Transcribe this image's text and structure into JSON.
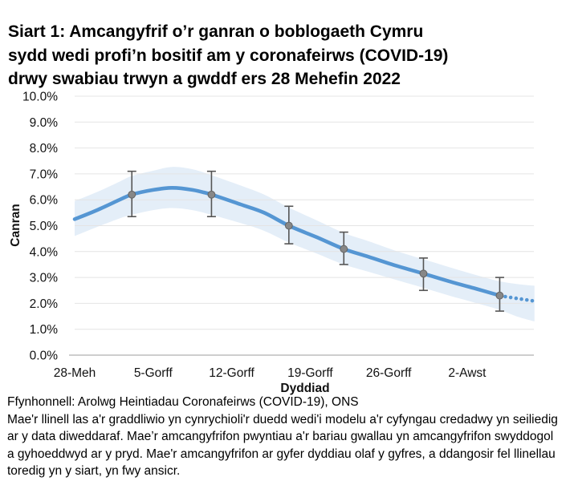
{
  "page": {
    "title_lines": [
      "Siart 1: Amcangyfrif o’r ganran o boblogaeth Cymru",
      "sydd wedi profi’n bositif am y coronafeirws (COVID-19)",
      "drwy swabiau trwyn a gwddf ers 28 Mehefin 2022"
    ],
    "source": "Ffynhonnell: Arolwg Heintiadau Coronafeirws (COVID-19), ONS",
    "note_lines": [
      "Mae'r llinell las a'r graddliwio yn cynrychioli'r duedd wedi'i modelu a'r cyfyngau credadwy yn seiliedig",
      "ar y data diweddaraf. Mae’r amcangyfrifon pwyntiau a'r bariau gwallau yn amcangyfrifon swyddogol",
      "a gyhoeddwyd ar y pryd. Mae'r amcangyfrifon ar gyfer dyddiau olaf y gyfres, a ddangosir fel llinellau",
      "toredig yn y siart, yn fwy ansicr."
    ]
  },
  "chart_data": {
    "type": "line",
    "title": "Siart 1: Amcangyfrif o’r ganran o boblogaeth Cymru sydd wedi profi’n bositif am y coronafeirws (COVID-19) drwy swabiau trwyn a gwddf ers 28 Mehefin 2022",
    "xlabel": "Dyddiad",
    "ylabel": "Canran",
    "ylim": [
      0,
      10
    ],
    "grid": true,
    "legend": false,
    "x_unit": "dyddiau ers 28 Mehefin 2022",
    "x_ticks": [
      {
        "day": 0,
        "label": "28-Meh"
      },
      {
        "day": 7,
        "label": "5-Gorff"
      },
      {
        "day": 14,
        "label": "12-Gorff"
      },
      {
        "day": 21,
        "label": "19-Gorff"
      },
      {
        "day": 28,
        "label": "26-Gorff"
      },
      {
        "day": 35,
        "label": "2-Awst"
      }
    ],
    "y_ticks": [
      {
        "value": 0,
        "label": "0.0%"
      },
      {
        "value": 1,
        "label": "1.0%"
      },
      {
        "value": 2,
        "label": "2.0%"
      },
      {
        "value": 3,
        "label": "3.0%"
      },
      {
        "value": 4,
        "label": "4.0%"
      },
      {
        "value": 5,
        "label": "5.0%"
      },
      {
        "value": 6,
        "label": "6.0%"
      },
      {
        "value": 7,
        "label": "7.0%"
      },
      {
        "value": 8,
        "label": "8.0%"
      },
      {
        "value": 9,
        "label": "9.0%"
      },
      {
        "value": 10,
        "label": "10.0%"
      }
    ],
    "modelled_trend": [
      [
        0,
        5.25
      ],
      [
        2,
        5.6
      ],
      [
        4,
        6.0
      ],
      [
        5.1,
        6.2
      ],
      [
        7,
        6.38
      ],
      [
        8.7,
        6.46
      ],
      [
        10.5,
        6.38
      ],
      [
        12.2,
        6.2
      ],
      [
        14.8,
        5.82
      ],
      [
        16.9,
        5.5
      ],
      [
        19.1,
        5.0
      ],
      [
        21.6,
        4.55
      ],
      [
        24,
        4.1
      ],
      [
        26.2,
        3.8
      ],
      [
        28.7,
        3.45
      ],
      [
        31.1,
        3.15
      ],
      [
        33.4,
        2.85
      ],
      [
        35.9,
        2.55
      ],
      [
        37.9,
        2.3
      ]
    ],
    "credible_band": [
      [
        0,
        4.6,
        5.95
      ],
      [
        2,
        4.95,
        6.3
      ],
      [
        4,
        5.28,
        6.7
      ],
      [
        5.1,
        5.42,
        6.92
      ],
      [
        7,
        5.6,
        7.12
      ],
      [
        8.7,
        5.68,
        7.27
      ],
      [
        10.5,
        5.6,
        7.18
      ],
      [
        12.2,
        5.42,
        6.95
      ],
      [
        14.8,
        5.1,
        6.55
      ],
      [
        16.9,
        4.8,
        6.2
      ],
      [
        19.1,
        4.35,
        5.7
      ],
      [
        21.6,
        3.92,
        5.2
      ],
      [
        24,
        3.5,
        4.72
      ],
      [
        26.2,
        3.22,
        4.4
      ],
      [
        28.7,
        2.9,
        4.02
      ],
      [
        31.1,
        2.6,
        3.7
      ],
      [
        33.4,
        2.3,
        3.4
      ],
      [
        35.9,
        2.0,
        3.08
      ],
      [
        37.9,
        1.75,
        2.85
      ],
      [
        39.4,
        1.5,
        2.75
      ],
      [
        41,
        1.3,
        2.68
      ]
    ],
    "official_estimates": [
      {
        "day": 5.1,
        "value": 6.2,
        "ci_lower": 5.35,
        "ci_upper": 7.1
      },
      {
        "day": 12.2,
        "value": 6.2,
        "ci_lower": 5.35,
        "ci_upper": 7.1
      },
      {
        "day": 19.1,
        "value": 5.0,
        "ci_lower": 4.3,
        "ci_upper": 5.75
      },
      {
        "day": 24,
        "value": 4.1,
        "ci_lower": 3.5,
        "ci_upper": 4.75
      },
      {
        "day": 31.1,
        "value": 3.15,
        "ci_lower": 2.5,
        "ci_upper": 3.75
      },
      {
        "day": 37.9,
        "value": 2.3,
        "ci_lower": 1.7,
        "ci_upper": 3.0
      }
    ],
    "dotted_projection": {
      "start_day": 38.4,
      "end_day": 40.8,
      "start_value": 2.26,
      "end_value": 2.1,
      "dots": 6
    },
    "colors": {
      "trend_line": "#5596d3",
      "confidence_band": "#e4eef8",
      "point_marker": "#878787",
      "point_marker_edge": "#646464",
      "error_bar": "#555555",
      "gridline": "#e4e4e4",
      "axis_line": "#b0b0b0",
      "text": "#000000"
    }
  }
}
